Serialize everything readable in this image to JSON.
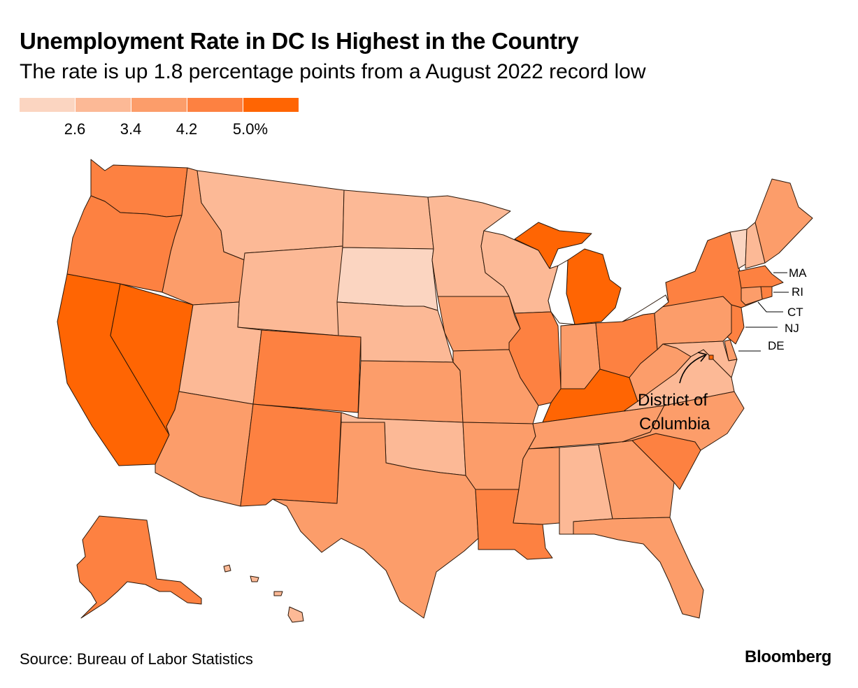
{
  "title": "Unemployment Rate in DC Is Highest in the Country",
  "subtitle": "The rate is up 1.8 percentage points from a August 2022 record low",
  "legend": {
    "colors": [
      "#fbd5c1",
      "#fcb996",
      "#fc9d6a",
      "#fd8141",
      "#ff6503"
    ],
    "ticks": [
      "2.6",
      "3.4",
      "4.2",
      "5.0%"
    ]
  },
  "labels": {
    "ma": "MA",
    "ri": "RI",
    "ct": "CT",
    "nj": "NJ",
    "de": "DE",
    "dc_line1": "District of",
    "dc_line2": "Columbia"
  },
  "states": [
    {
      "id": "WA",
      "bin": 3
    },
    {
      "id": "OR",
      "bin": 3
    },
    {
      "id": "CA",
      "bin": 4
    },
    {
      "id": "NV",
      "bin": 4
    },
    {
      "id": "ID",
      "bin": 2
    },
    {
      "id": "MT",
      "bin": 1
    },
    {
      "id": "WY",
      "bin": 1
    },
    {
      "id": "UT",
      "bin": 1
    },
    {
      "id": "AZ",
      "bin": 2
    },
    {
      "id": "CO",
      "bin": 3
    },
    {
      "id": "NM",
      "bin": 3
    },
    {
      "id": "ND",
      "bin": 1
    },
    {
      "id": "SD",
      "bin": 0
    },
    {
      "id": "NE",
      "bin": 1
    },
    {
      "id": "KS",
      "bin": 2
    },
    {
      "id": "OK",
      "bin": 1
    },
    {
      "id": "TX",
      "bin": 2
    },
    {
      "id": "MN",
      "bin": 1
    },
    {
      "id": "IA",
      "bin": 2
    },
    {
      "id": "MO",
      "bin": 2
    },
    {
      "id": "AR",
      "bin": 2
    },
    {
      "id": "LA",
      "bin": 3
    },
    {
      "id": "WI",
      "bin": 1
    },
    {
      "id": "IL",
      "bin": 3
    },
    {
      "id": "MI",
      "bin": 4
    },
    {
      "id": "IN",
      "bin": 2
    },
    {
      "id": "OH",
      "bin": 3
    },
    {
      "id": "KY",
      "bin": 4
    },
    {
      "id": "TN",
      "bin": 2
    },
    {
      "id": "MS",
      "bin": 2
    },
    {
      "id": "AL",
      "bin": 1
    },
    {
      "id": "GA",
      "bin": 2
    },
    {
      "id": "FL",
      "bin": 2
    },
    {
      "id": "SC",
      "bin": 3
    },
    {
      "id": "NC",
      "bin": 2
    },
    {
      "id": "VA",
      "bin": 1
    },
    {
      "id": "WV",
      "bin": 2
    },
    {
      "id": "PA",
      "bin": 2
    },
    {
      "id": "NY",
      "bin": 3
    },
    {
      "id": "VT",
      "bin": 0
    },
    {
      "id": "NH",
      "bin": 1
    },
    {
      "id": "ME",
      "bin": 2
    },
    {
      "id": "MA",
      "bin": 3
    },
    {
      "id": "RI",
      "bin": 3
    },
    {
      "id": "CT",
      "bin": 2
    },
    {
      "id": "NJ",
      "bin": 3
    },
    {
      "id": "DE",
      "bin": 2
    },
    {
      "id": "MD",
      "bin": 1
    },
    {
      "id": "DC",
      "bin": 4
    },
    {
      "id": "AK",
      "bin": 3
    },
    {
      "id": "HI",
      "bin": 1
    }
  ],
  "source": "Source: Bureau of Labor Statistics",
  "brand": "Bloomberg"
}
